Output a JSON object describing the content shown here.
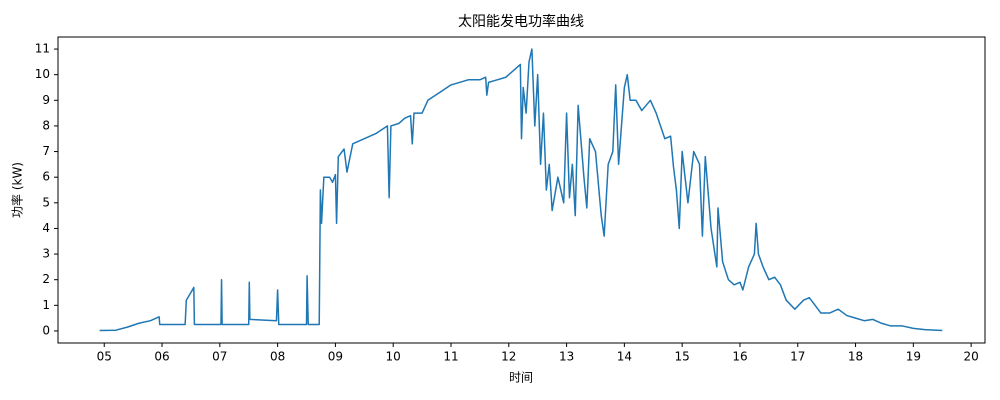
{
  "chart_data": {
    "type": "line",
    "title": "太阳能发电功率曲线",
    "x_label": "时间",
    "y_label": "功率 (kW)",
    "color": "#1f77b4",
    "xlim": [
      4.2,
      20.24
    ],
    "ylim": [
      -0.47,
      11.47
    ],
    "xticks": [
      {
        "value": 5,
        "label": "05"
      },
      {
        "value": 6,
        "label": "06"
      },
      {
        "value": 7,
        "label": "07"
      },
      {
        "value": 8,
        "label": "08"
      },
      {
        "value": 9,
        "label": "09"
      },
      10,
      11,
      12,
      13,
      14,
      15,
      16,
      17,
      18,
      19,
      20
    ],
    "yticks": [
      0,
      1,
      2,
      3,
      4,
      5,
      6,
      7,
      8,
      9,
      10,
      11
    ],
    "x": [
      4.92,
      5.2,
      5.4,
      5.6,
      5.8,
      5.95,
      5.96,
      6.4,
      6.42,
      6.5,
      6.55,
      6.56,
      7.02,
      7.03,
      7.04,
      7.5,
      7.51,
      7.52,
      7.98,
      8.0,
      8.02,
      8.5,
      8.51,
      8.53,
      8.72,
      8.74,
      8.76,
      8.8,
      8.9,
      8.95,
      9.0,
      9.02,
      9.05,
      9.15,
      9.2,
      9.3,
      9.5,
      9.7,
      9.9,
      9.93,
      9.96,
      10.1,
      10.2,
      10.3,
      10.33,
      10.36,
      10.5,
      10.6,
      10.8,
      11.0,
      11.3,
      11.5,
      11.6,
      11.62,
      11.65,
      11.8,
      11.95,
      12.1,
      12.2,
      12.22,
      12.25,
      12.3,
      12.35,
      12.4,
      12.45,
      12.5,
      12.55,
      12.6,
      12.65,
      12.7,
      12.75,
      12.85,
      12.95,
      13.0,
      13.05,
      13.1,
      13.15,
      13.2,
      13.3,
      13.35,
      13.4,
      13.5,
      13.6,
      13.65,
      13.72,
      13.8,
      13.85,
      13.9,
      14.0,
      14.05,
      14.1,
      14.2,
      14.3,
      14.45,
      14.55,
      14.7,
      14.8,
      14.85,
      14.9,
      14.95,
      15.0,
      15.1,
      15.2,
      15.3,
      15.35,
      15.4,
      15.5,
      15.6,
      15.62,
      15.7,
      15.8,
      15.9,
      16.0,
      16.05,
      16.15,
      16.25,
      16.28,
      16.32,
      16.4,
      16.5,
      16.6,
      16.7,
      16.8,
      16.95,
      17.1,
      17.2,
      17.3,
      17.4,
      17.55,
      17.7,
      17.85,
      18.0,
      18.15,
      18.3,
      18.45,
      18.6,
      18.8,
      19.0,
      19.2,
      19.5
    ],
    "y": [
      0.02,
      0.03,
      0.15,
      0.3,
      0.4,
      0.55,
      0.25,
      0.25,
      1.2,
      1.5,
      1.7,
      0.25,
      0.25,
      2.0,
      0.25,
      0.25,
      1.9,
      0.45,
      0.4,
      1.6,
      0.25,
      0.25,
      2.15,
      0.25,
      0.25,
      5.5,
      4.2,
      6.0,
      6.0,
      5.8,
      6.1,
      4.2,
      6.8,
      7.1,
      6.2,
      7.3,
      7.5,
      7.7,
      8.0,
      5.2,
      8.0,
      8.1,
      8.3,
      8.4,
      7.3,
      8.5,
      8.5,
      9.0,
      9.3,
      9.6,
      9.8,
      9.8,
      9.9,
      9.2,
      9.7,
      9.8,
      9.9,
      10.2,
      10.4,
      7.5,
      9.5,
      8.5,
      10.5,
      11.0,
      8.0,
      10.0,
      6.5,
      8.5,
      5.5,
      6.5,
      4.7,
      6.0,
      5.0,
      8.5,
      5.2,
      6.5,
      4.5,
      8.8,
      6.0,
      4.8,
      7.5,
      7.0,
      4.5,
      3.7,
      6.5,
      7.0,
      9.6,
      6.5,
      9.5,
      10.0,
      9.0,
      9.0,
      8.6,
      9.0,
      8.5,
      7.5,
      7.6,
      6.4,
      5.5,
      4.0,
      7.0,
      5.0,
      7.0,
      6.5,
      3.7,
      6.8,
      4.0,
      2.5,
      4.8,
      2.7,
      2.0,
      1.8,
      1.9,
      1.6,
      2.5,
      3.0,
      4.2,
      3.0,
      2.5,
      2.0,
      2.1,
      1.8,
      1.2,
      0.85,
      1.2,
      1.3,
      1.0,
      0.7,
      0.7,
      0.85,
      0.6,
      0.5,
      0.4,
      0.45,
      0.3,
      0.2,
      0.2,
      0.1,
      0.05,
      0.02
    ]
  }
}
